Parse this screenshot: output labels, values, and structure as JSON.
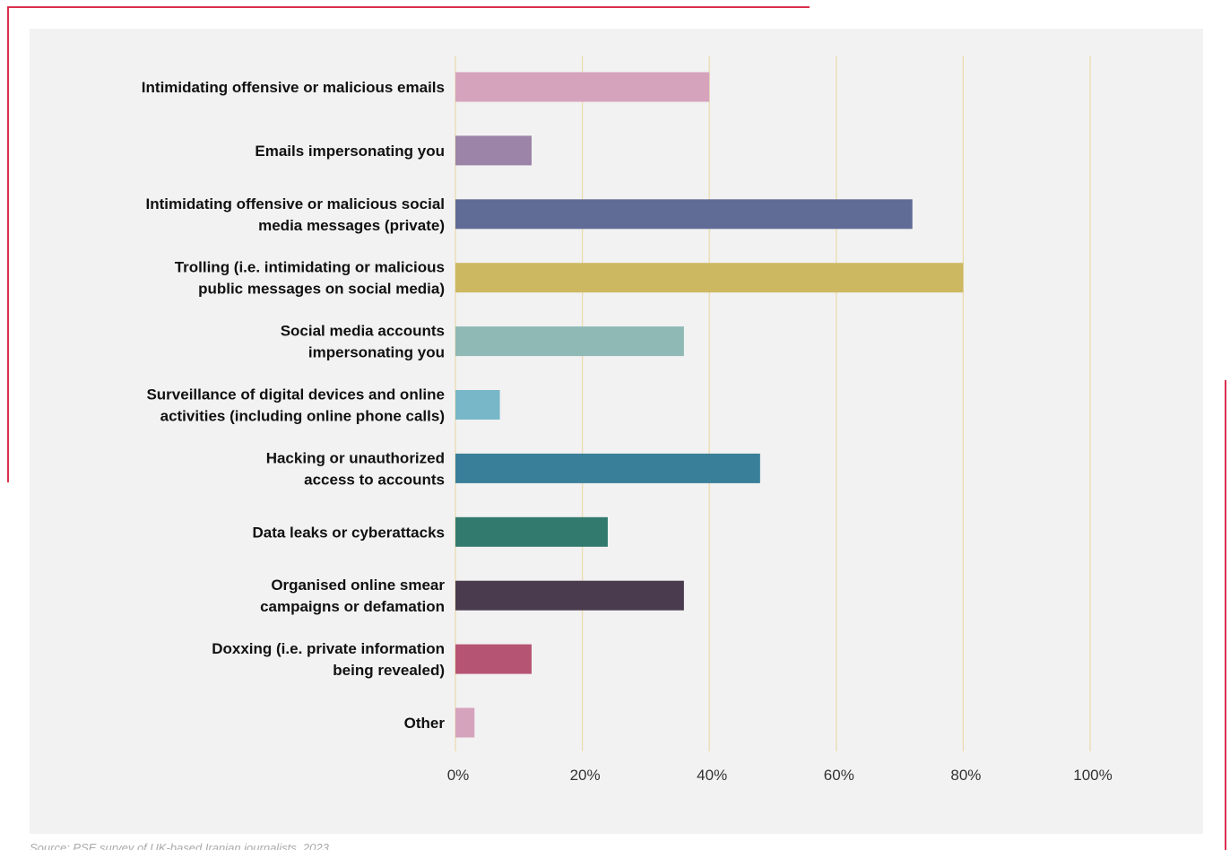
{
  "chart_data": {
    "type": "bar",
    "orientation": "horizontal",
    "title": "",
    "xlabel": "",
    "ylabel": "",
    "xlim": [
      0,
      100
    ],
    "grid": true,
    "legend": "none",
    "categories": [
      [
        "Intimidating offensive or malicious emails"
      ],
      [
        "Emails impersonating you"
      ],
      [
        "Intimidating offensive or malicious social",
        "media messages (private)"
      ],
      [
        "Trolling (i.e. intimidating or malicious",
        "public messages on social media)"
      ],
      [
        "Social media accounts",
        "impersonating you"
      ],
      [
        "Surveillance of digital devices and online",
        "activities (including online phone calls)"
      ],
      [
        "Hacking or unauthorized",
        "access to accounts"
      ],
      [
        "Data leaks or cyberattacks"
      ],
      [
        "Organised online smear",
        "campaigns or defamation"
      ],
      [
        "Doxxing (i.e. private information",
        "being revealed)"
      ],
      [
        "Other"
      ]
    ],
    "values": [
      40,
      12,
      72,
      80,
      36,
      7,
      48,
      24,
      36,
      12,
      3
    ],
    "colors": [
      "#d6a3bd",
      "#9b84a8",
      "#606b96",
      "#cdb862",
      "#8fb9b4",
      "#78b7c8",
      "#3a7f9a",
      "#327a6d",
      "#4a3b4e",
      "#b65573",
      "#d6a3bd"
    ],
    "ticks": [
      0,
      20,
      40,
      60,
      80,
      100
    ],
    "tick_labels": [
      "0%",
      "20%",
      "40%",
      "60%",
      "80%",
      "100%"
    ],
    "grid_color": "#eadbb0"
  },
  "source": "Source: PSE survey of UK-based Iranian journalists, 2023"
}
